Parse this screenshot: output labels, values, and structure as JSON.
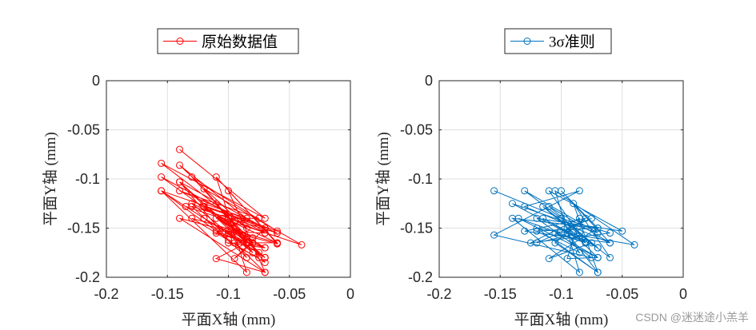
{
  "watermark": "CSDN @迷迷途小羔羊",
  "chart_data": [
    {
      "type": "line",
      "legend": "原始数据值",
      "legend_position": "top-center",
      "xlabel": "平面X轴 (mm)",
      "ylabel": "平面Y轴 (mm)",
      "xlim": [
        -0.2,
        0
      ],
      "ylim": [
        -0.2,
        0
      ],
      "xticks": [
        -0.2,
        -0.15,
        -0.1,
        -0.05,
        0
      ],
      "xtick_labels": [
        "-0.2",
        "-0.15",
        "-0.1",
        "-0.05",
        "0"
      ],
      "yticks": [
        0,
        -0.05,
        -0.1,
        -0.15,
        -0.2
      ],
      "ytick_labels": [
        "0",
        "-0.05",
        "-0.1",
        "-0.15",
        "-0.2"
      ],
      "grid": true,
      "color": "#ff0000",
      "marker": "circle",
      "series": [
        {
          "x": [
            -0.14,
            -0.07,
            -0.155,
            -0.085,
            -0.14,
            -0.07,
            -0.155,
            -0.08,
            -0.13,
            -0.06,
            -0.155,
            -0.1,
            -0.14,
            -0.075,
            -0.12,
            -0.04,
            -0.135,
            -0.07,
            -0.155,
            -0.085,
            -0.11,
            -0.06,
            -0.14,
            -0.07,
            -0.1,
            -0.06,
            -0.13,
            -0.07,
            -0.11,
            -0.08,
            -0.14,
            -0.07,
            -0.12,
            -0.08,
            -0.11,
            -0.07,
            -0.1,
            -0.085,
            -0.13,
            -0.06,
            -0.14,
            -0.075,
            -0.1,
            -0.07,
            -0.11,
            -0.085,
            -0.12,
            -0.07,
            -0.1,
            -0.08,
            -0.13,
            -0.06,
            -0.095,
            -0.07,
            -0.11,
            -0.085,
            -0.12,
            -0.07,
            -0.095,
            -0.08,
            -0.105,
            -0.07,
            -0.12,
            -0.085,
            -0.11,
            -0.07,
            -0.1,
            -0.075
          ],
          "y": [
            -0.07,
            -0.14,
            -0.084,
            -0.15,
            -0.086,
            -0.155,
            -0.098,
            -0.165,
            -0.098,
            -0.153,
            -0.112,
            -0.162,
            -0.103,
            -0.175,
            -0.11,
            -0.167,
            -0.128,
            -0.18,
            -0.112,
            -0.195,
            -0.098,
            -0.166,
            -0.14,
            -0.195,
            -0.112,
            -0.165,
            -0.14,
            -0.185,
            -0.125,
            -0.175,
            -0.103,
            -0.15,
            -0.128,
            -0.16,
            -0.14,
            -0.17,
            -0.153,
            -0.18,
            -0.128,
            -0.155,
            -0.112,
            -0.14,
            -0.14,
            -0.155,
            -0.153,
            -0.165,
            -0.14,
            -0.18,
            -0.155,
            -0.175,
            -0.125,
            -0.165,
            -0.165,
            -0.195,
            -0.181,
            -0.165,
            -0.128,
            -0.15,
            -0.181,
            -0.165,
            -0.14,
            -0.18,
            -0.125,
            -0.14,
            -0.155,
            -0.17,
            -0.165,
            -0.18
          ]
        }
      ]
    },
    {
      "type": "line",
      "legend": "3σ准则",
      "legend_position": "top-center",
      "xlabel": "平面X轴 (mm)",
      "ylabel": "平面Y轴 (mm)",
      "xlim": [
        -0.2,
        0
      ],
      "ylim": [
        -0.2,
        0
      ],
      "xticks": [
        -0.2,
        -0.15,
        -0.1,
        -0.05,
        0
      ],
      "xtick_labels": [
        "-0.2",
        "-0.15",
        "-0.1",
        "-0.05",
        "0"
      ],
      "yticks": [
        0,
        -0.05,
        -0.1,
        -0.15,
        -0.2
      ],
      "ytick_labels": [
        "0",
        "-0.05",
        "-0.1",
        "-0.15",
        "-0.2"
      ],
      "grid": true,
      "color": "#0072bd",
      "marker": "circle",
      "series": [
        {
          "x": [
            -0.155,
            -0.1,
            -0.13,
            -0.07,
            -0.14,
            -0.08,
            -0.11,
            -0.05,
            -0.12,
            -0.075,
            -0.155,
            -0.085,
            -0.13,
            -0.06,
            -0.1,
            -0.07,
            -0.14,
            -0.085,
            -0.105,
            -0.04,
            -0.12,
            -0.07,
            -0.09,
            -0.06,
            -0.115,
            -0.08,
            -0.135,
            -0.07,
            -0.095,
            -0.085,
            -0.125,
            -0.06,
            -0.1,
            -0.075,
            -0.11,
            -0.07,
            -0.12,
            -0.085,
            -0.095,
            -0.07,
            -0.105,
            -0.08,
            -0.13,
            -0.06,
            -0.11,
            -0.07,
            -0.1,
            -0.085,
            -0.12,
            -0.075,
            -0.095,
            -0.07,
            -0.105,
            -0.08,
            -0.115,
            -0.07
          ],
          "y": [
            -0.112,
            -0.14,
            -0.112,
            -0.155,
            -0.125,
            -0.165,
            -0.112,
            -0.153,
            -0.14,
            -0.18,
            -0.157,
            -0.112,
            -0.128,
            -0.165,
            -0.112,
            -0.15,
            -0.14,
            -0.195,
            -0.112,
            -0.167,
            -0.15,
            -0.195,
            -0.125,
            -0.18,
            -0.128,
            -0.165,
            -0.14,
            -0.18,
            -0.181,
            -0.14,
            -0.165,
            -0.155,
            -0.14,
            -0.165,
            -0.181,
            -0.15,
            -0.153,
            -0.175,
            -0.155,
            -0.195,
            -0.165,
            -0.14,
            -0.153,
            -0.165,
            -0.128,
            -0.17,
            -0.14,
            -0.155,
            -0.165,
            -0.14,
            -0.15,
            -0.18,
            -0.155,
            -0.165,
            -0.14,
            -0.17
          ]
        }
      ]
    }
  ]
}
